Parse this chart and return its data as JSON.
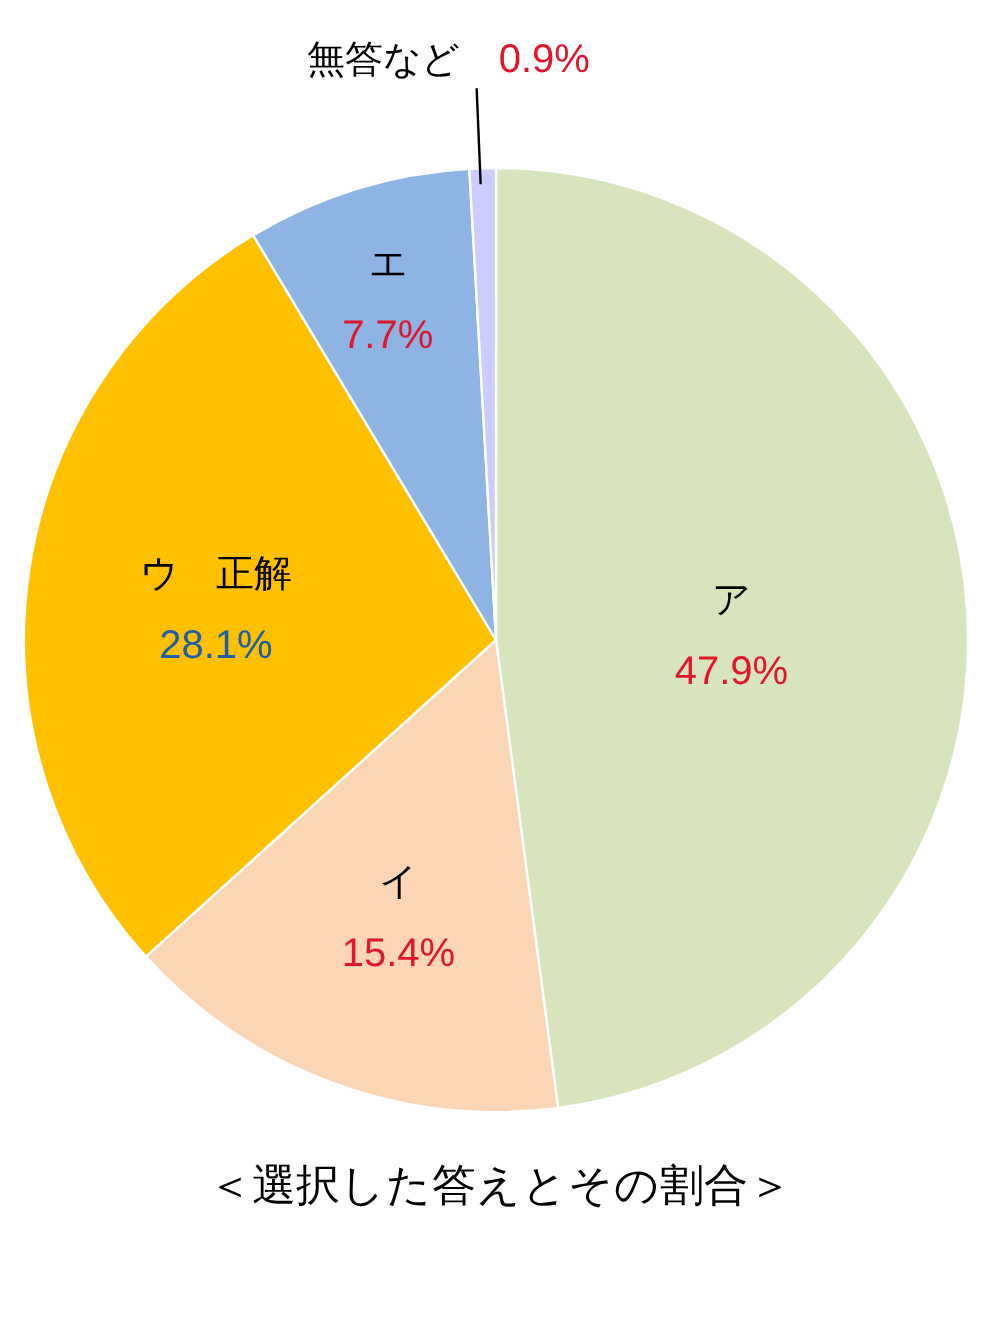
{
  "chart_data": {
    "type": "pie",
    "title": "＜選択した答えとその割合＞",
    "categories": [
      "ア",
      "イ",
      "ウ　正解",
      "エ",
      "無答など"
    ],
    "values": [
      47.9,
      15.4,
      28.1,
      7.7,
      0.9
    ],
    "value_labels": [
      "47.9%",
      "15.4%",
      "28.1%",
      "7.7%",
      "0.9%"
    ],
    "colors": [
      "#d8e4bc",
      "#fcd5b4",
      "#ffc000",
      "#8db4e2",
      "#ccccff"
    ]
  }
}
